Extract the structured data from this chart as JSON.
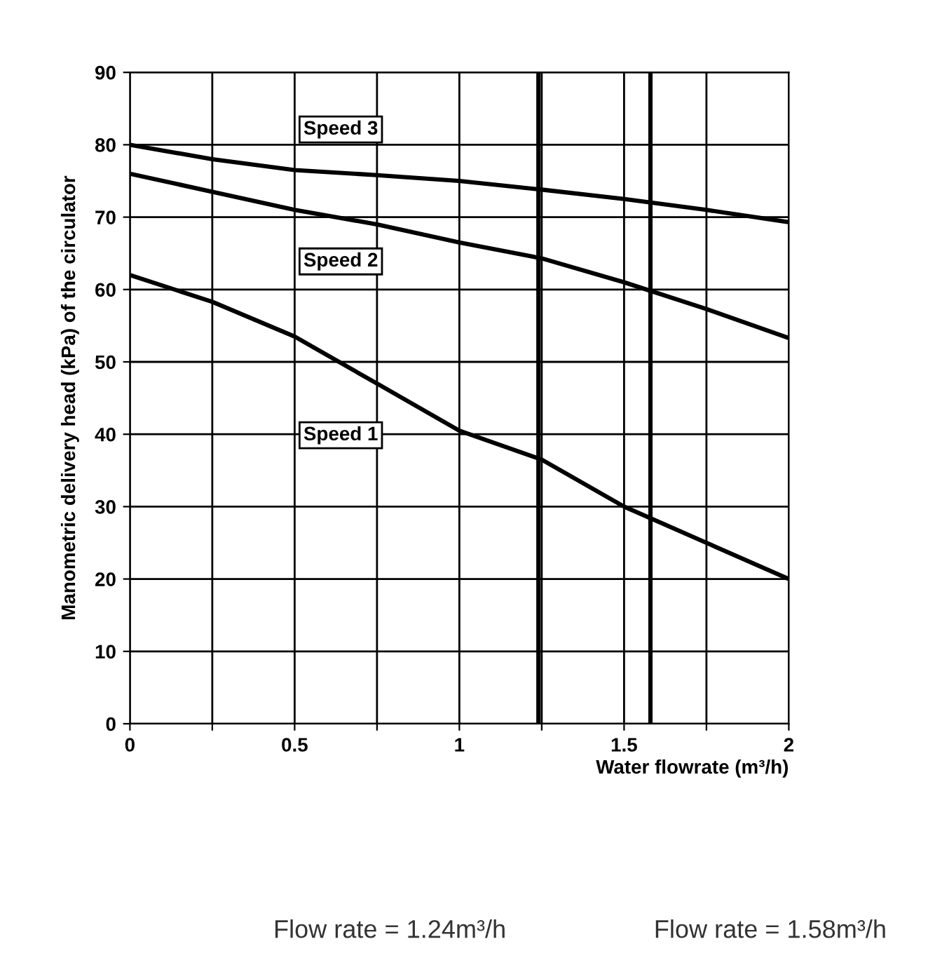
{
  "chart_data": {
    "type": "line",
    "xlabel": "Water flowrate (m³/h)",
    "ylabel": "Manometric delivery head (kPa) of the circulator",
    "x": [
      0,
      0.25,
      0.5,
      0.75,
      1,
      1.25,
      1.5,
      1.75,
      2
    ],
    "series": [
      {
        "name": "Speed 3",
        "color": "#000000",
        "values": [
          80,
          78,
          76.5,
          75.8,
          75,
          73.8,
          72.5,
          71,
          69.3
        ]
      },
      {
        "name": "Speed 2",
        "color": "#000000",
        "values": [
          76,
          73.5,
          71,
          69,
          66.5,
          64.3,
          61,
          57.3,
          53.3
        ]
      },
      {
        "name": "Speed 1",
        "color": "#000000",
        "values": [
          62,
          58.3,
          53.5,
          47,
          40.5,
          36.5,
          30,
          25,
          20
        ]
      }
    ],
    "xlim": [
      0,
      2
    ],
    "ylim": [
      0,
      90
    ],
    "xticks": [
      0,
      {
        "value": 0.25,
        "label": null
      },
      0.5,
      {
        "value": 0.75,
        "label": null
      },
      1,
      {
        "value": 1.25,
        "label": null
      },
      1.5,
      {
        "value": 1.75,
        "label": null
      },
      2
    ],
    "yticks": [
      0,
      10,
      20,
      30,
      40,
      50,
      60,
      70,
      80,
      90
    ],
    "grid": true,
    "marker": "none",
    "line_style": "solid",
    "legend": false,
    "ref_lines": [
      {
        "axis": "x",
        "value": 1.24,
        "color": "#000000"
      },
      {
        "axis": "x",
        "value": 1.58,
        "color": "#000000"
      }
    ],
    "annotations": [
      "Flow rate = 1.24m³/h",
      "Flow rate = 1.58m³/h"
    ]
  }
}
